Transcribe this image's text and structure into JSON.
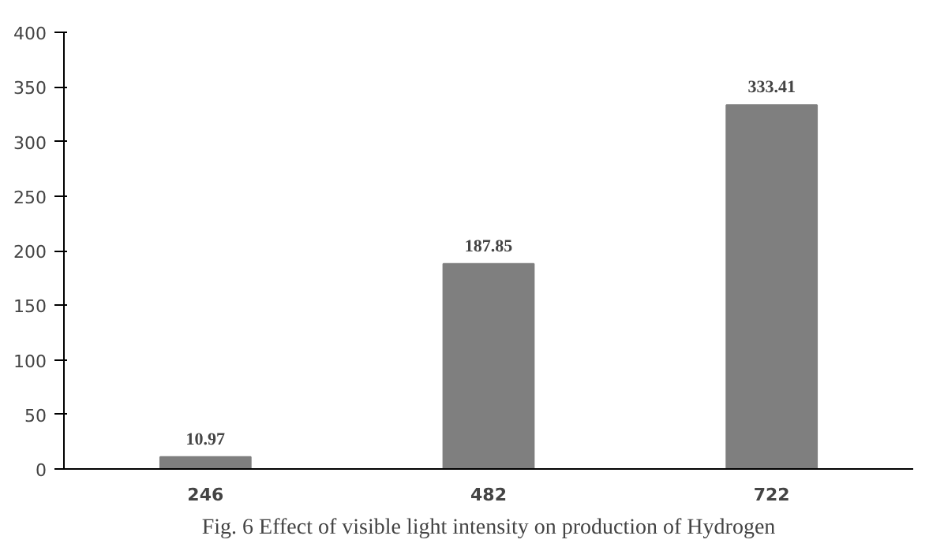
{
  "chart_data": {
    "type": "bar",
    "categories": [
      "246",
      "482",
      "722"
    ],
    "values": [
      10.97,
      187.85,
      333.41
    ],
    "color": "#7f7f7f",
    "ylim": [
      0,
      400
    ],
    "yticks": [
      0,
      50,
      100,
      150,
      200,
      250,
      300,
      350,
      400
    ],
    "grid": false,
    "data_labels": true,
    "annotations": [
      "Fig. 6 Effect of visible light intensity on production of Hydrogen"
    ]
  }
}
